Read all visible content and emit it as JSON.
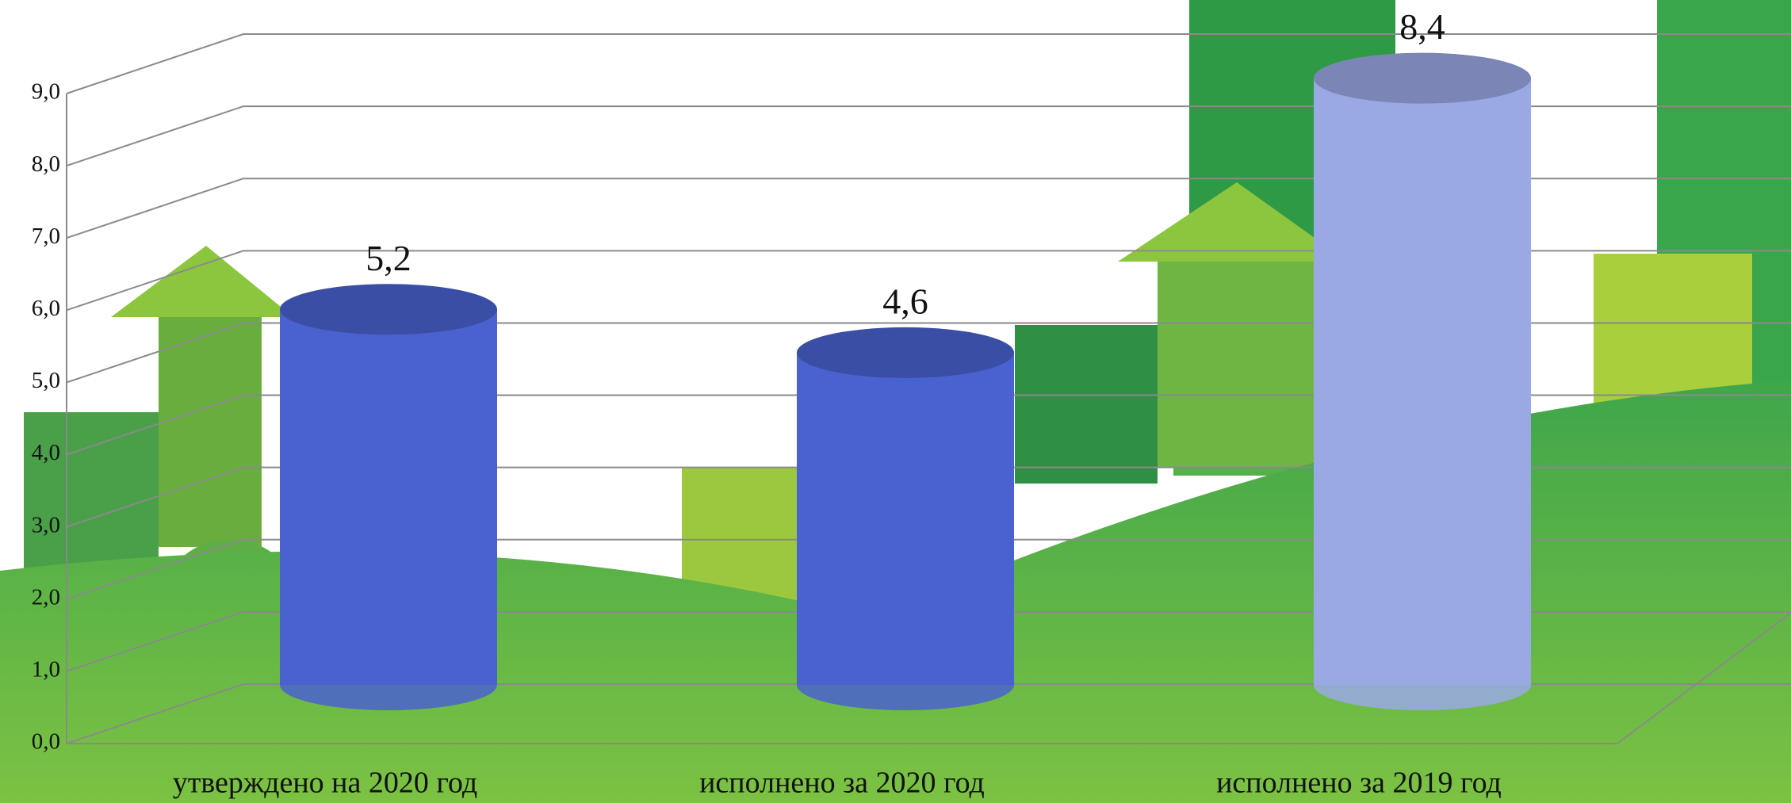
{
  "chart_data": {
    "type": "bar3d",
    "categories": [
      "утверждено на 2020 год",
      "исполнено за 2020 год",
      "исполнено за 2019 год"
    ],
    "values": [
      5.2,
      4.6,
      8.4
    ],
    "value_labels": [
      "5,2",
      "4,6",
      "8,4"
    ],
    "colors": [
      "#4a62d0",
      "#4a62d0",
      "#9aa8e4"
    ],
    "ylim": [
      0,
      9
    ],
    "yticks": [
      {
        "value": 0,
        "label": "0,0"
      },
      {
        "value": 1,
        "label": "1,0"
      },
      {
        "value": 2,
        "label": "2,0"
      },
      {
        "value": 3,
        "label": "3,0"
      },
      {
        "value": 4,
        "label": "4,0"
      },
      {
        "value": 5,
        "label": "5,0"
      },
      {
        "value": 6,
        "label": "6,0"
      },
      {
        "value": 7,
        "label": "7,0"
      },
      {
        "value": 8,
        "label": "8,0"
      },
      {
        "value": 9,
        "label": "9,0"
      }
    ],
    "grid": true
  }
}
